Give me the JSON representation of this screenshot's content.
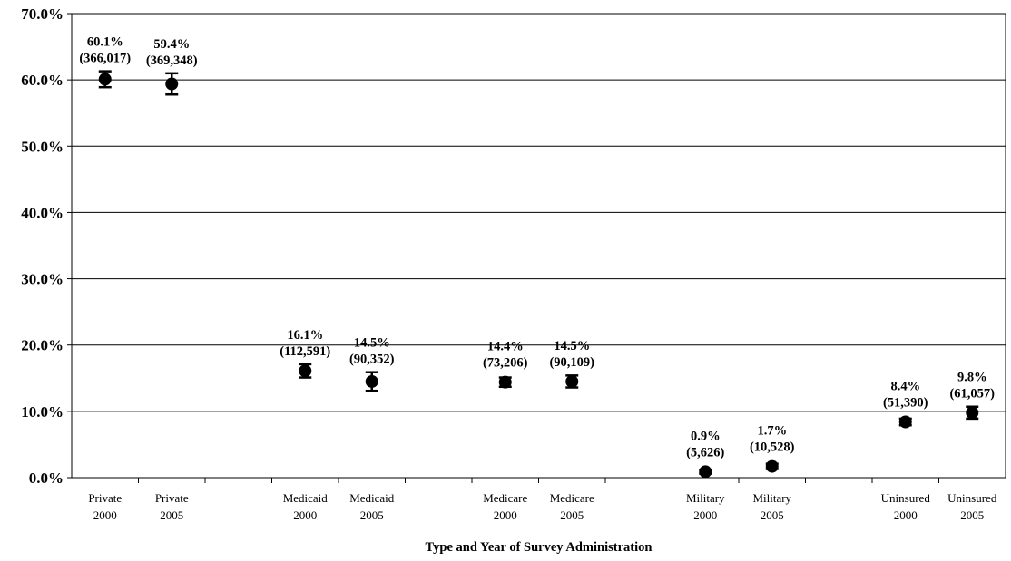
{
  "chart_data": {
    "type": "scatter",
    "title": "",
    "xlabel": "Type and Year of Survey Administration",
    "ylabel": "",
    "ylim": [
      0,
      70
    ],
    "yticks": [
      "0.0%",
      "10.0%",
      "20.0%",
      "30.0%",
      "40.0%",
      "50.0%",
      "60.0%",
      "70.0%"
    ],
    "grid": "horizontal",
    "legend": "none",
    "marker": "circle",
    "error_bars": true,
    "points": [
      {
        "category": [
          "Private",
          "2000"
        ],
        "value": 60.1,
        "err_low": 58.9,
        "err_high": 61.3,
        "label": "60.1%",
        "count": "(366,017)"
      },
      {
        "category": [
          "Private",
          "2005"
        ],
        "value": 59.4,
        "err_low": 57.8,
        "err_high": 61.0,
        "label": "59.4%",
        "count": "(369,348)"
      },
      {
        "category": [
          "Medicaid",
          "2000"
        ],
        "value": 16.1,
        "err_low": 15.1,
        "err_high": 17.1,
        "label": "16.1%",
        "count": "(112,591)"
      },
      {
        "category": [
          "Medicaid",
          "2005"
        ],
        "value": 14.5,
        "err_low": 13.1,
        "err_high": 15.9,
        "label": "14.5%",
        "count": "(90,352)"
      },
      {
        "category": [
          "Medicare",
          "2000"
        ],
        "value": 14.4,
        "err_low": 13.7,
        "err_high": 15.1,
        "label": "14.4%",
        "count": "(73,206)"
      },
      {
        "category": [
          "Medicare",
          "2005"
        ],
        "value": 14.5,
        "err_low": 13.6,
        "err_high": 15.4,
        "label": "14.5%",
        "count": "(90,109)"
      },
      {
        "category": [
          "Military",
          "2000"
        ],
        "value": 0.9,
        "err_low": 0.6,
        "err_high": 1.2,
        "label": "0.9%",
        "count": "(5,626)"
      },
      {
        "category": [
          "Military",
          "2005"
        ],
        "value": 1.7,
        "err_low": 1.3,
        "err_high": 2.1,
        "label": "1.7%",
        "count": "(10,528)"
      },
      {
        "category": [
          "Uninsured",
          "2000"
        ],
        "value": 8.4,
        "err_low": 7.9,
        "err_high": 8.9,
        "label": "8.4%",
        "count": "(51,390)"
      },
      {
        "category": [
          "Uninsured",
          "2005"
        ],
        "value": 9.8,
        "err_low": 8.9,
        "err_high": 10.7,
        "label": "9.8%",
        "count": "(61,057)"
      }
    ]
  }
}
